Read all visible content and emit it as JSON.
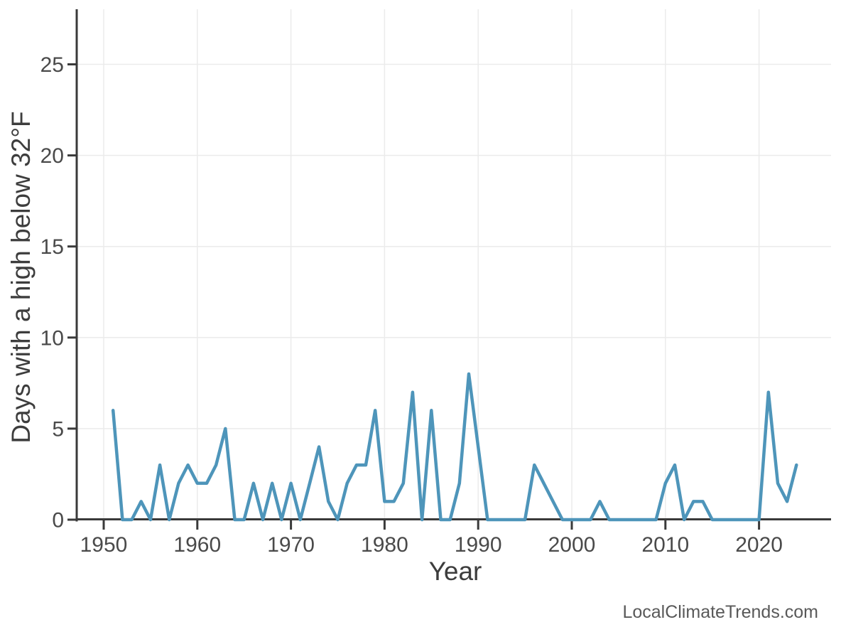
{
  "chart_data": {
    "type": "line",
    "title": "",
    "xlabel": "Year",
    "ylabel": "Days with a high below 32°F",
    "x_ticks": [
      1950,
      1960,
      1970,
      1980,
      1990,
      2000,
      2010,
      2020
    ],
    "y_ticks": [
      0,
      5,
      10,
      15,
      20,
      25
    ],
    "xlim": [
      1947.1,
      2027.7
    ],
    "ylim": [
      0,
      28
    ],
    "grid": true,
    "legend": false,
    "series": [
      {
        "name": "days-with-high-below-32F",
        "color": "#4E95BA",
        "x": [
          1951,
          1952,
          1953,
          1954,
          1955,
          1956,
          1957,
          1958,
          1959,
          1960,
          1961,
          1962,
          1963,
          1964,
          1965,
          1966,
          1967,
          1968,
          1969,
          1970,
          1971,
          1972,
          1973,
          1974,
          1975,
          1976,
          1977,
          1978,
          1979,
          1980,
          1981,
          1982,
          1983,
          1984,
          1985,
          1986,
          1987,
          1988,
          1989,
          1990,
          1991,
          1992,
          1993,
          1994,
          1995,
          1996,
          1997,
          1998,
          1999,
          2000,
          2001,
          2002,
          2003,
          2004,
          2005,
          2006,
          2007,
          2008,
          2009,
          2010,
          2011,
          2012,
          2013,
          2014,
          2015,
          2016,
          2017,
          2018,
          2019,
          2020,
          2021,
          2022,
          2023,
          2024
        ],
        "values": [
          6,
          0,
          0,
          1,
          0,
          3,
          0,
          2,
          3,
          2,
          2,
          3,
          5,
          0,
          0,
          2,
          0,
          2,
          0,
          2,
          0,
          2,
          4,
          1,
          0,
          2,
          3,
          3,
          6,
          1,
          1,
          2,
          7,
          0,
          6,
          0,
          0,
          2,
          8,
          4,
          0,
          0,
          0,
          0,
          0,
          3,
          2,
          1,
          0,
          0,
          0,
          0,
          1,
          0,
          0,
          0,
          0,
          0,
          0,
          2,
          3,
          0,
          1,
          1,
          0,
          0,
          0,
          0,
          0,
          0,
          7,
          2,
          1,
          3
        ]
      }
    ]
  },
  "watermark": {
    "text": "LocalClimateTrends.com"
  },
  "colors": {
    "line": "#4E95BA",
    "spine": "#3A3A3A",
    "grid": "#EBEBEB",
    "tick_label": "#4A4A4A",
    "axis_title": "#3D3D3D",
    "watermark": "#595959",
    "background": "#FFFFFF"
  }
}
